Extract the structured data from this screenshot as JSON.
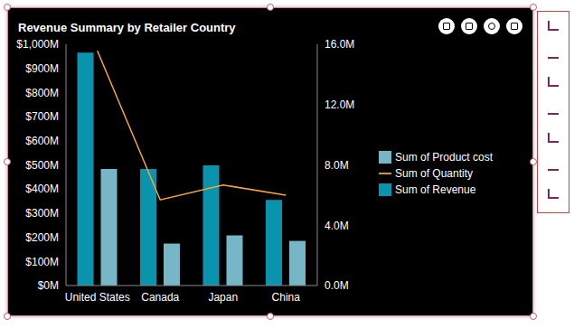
{
  "chart_data": {
    "type": "bar",
    "title": "Revenue Summary by Retailer Country",
    "categories": [
      "United States",
      "Canada",
      "Japan",
      "China"
    ],
    "series": [
      {
        "name": "Sum of Revenue",
        "type": "bar",
        "color": "#0a93ad",
        "values": [
          965,
          483,
          498,
          355
        ]
      },
      {
        "name": "Sum of Product cost",
        "type": "bar",
        "color": "#76b6c6",
        "values": [
          483,
          174,
          208,
          185
        ]
      },
      {
        "name": "Sum of Quantity",
        "type": "line",
        "axis": "y2",
        "color": "#f5a83a",
        "values": [
          15.57,
          5.68,
          6.67,
          5.99
        ]
      }
    ],
    "ylim": [
      0,
      1000
    ],
    "yticks": [
      {
        "value": 0,
        "label": "$0M"
      },
      {
        "value": 100,
        "label": "$100M"
      },
      {
        "value": 200,
        "label": "$200M"
      },
      {
        "value": 300,
        "label": "$300M"
      },
      {
        "value": 400,
        "label": "$400M"
      },
      {
        "value": 500,
        "label": "$500M"
      },
      {
        "value": 600,
        "label": "$600M"
      },
      {
        "value": 700,
        "label": "$700M"
      },
      {
        "value": 800,
        "label": "$800M"
      },
      {
        "value": 900,
        "label": "$900M"
      },
      {
        "value": 1000,
        "label": "$1,000M"
      }
    ],
    "y2lim": [
      0,
      16
    ],
    "y2ticks": [
      {
        "value": 0,
        "label": "0.0M"
      },
      {
        "value": 4,
        "label": "4.0M"
      },
      {
        "value": 8,
        "label": "8.0M"
      },
      {
        "value": 12,
        "label": "12.0M"
      },
      {
        "value": 16,
        "label": "16.0M"
      }
    ],
    "grid": false,
    "legend": "right"
  }
}
